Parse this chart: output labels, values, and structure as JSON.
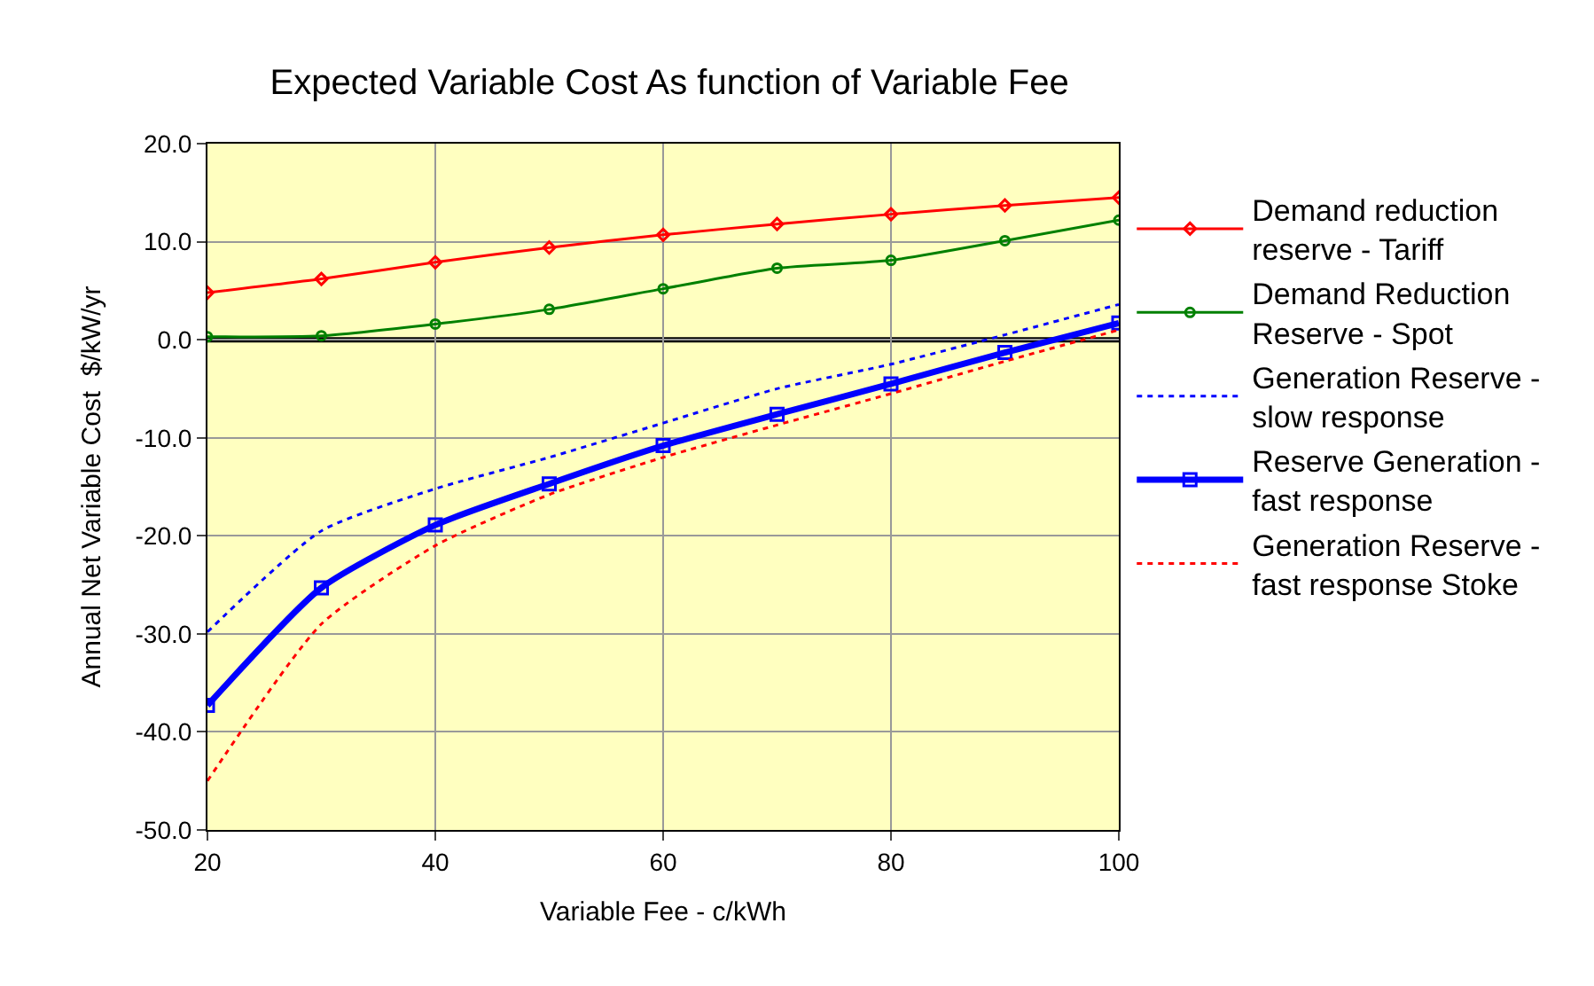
{
  "chart_data": {
    "type": "line",
    "title": "Expected Variable Cost As function of Variable Fee",
    "xlabel": "Variable Fee - c/kWh",
    "ylabel": "Annual Net Variable Cost  $/kW/yr",
    "x": [
      20,
      30,
      40,
      50,
      60,
      70,
      80,
      90,
      100
    ],
    "series": [
      {
        "name": "Demand reduction reserve - Tariff",
        "color": "#ff0000",
        "marker": "diamond",
        "line_style": "solid",
        "values": [
          4.8,
          6.2,
          7.9,
          9.4,
          10.7,
          11.8,
          12.8,
          13.7,
          14.5
        ]
      },
      {
        "name": "Demand Reduction Reserve - Spot",
        "color": "#008000",
        "marker": "circle",
        "line_style": "solid",
        "values": [
          0.3,
          0.4,
          1.6,
          3.1,
          5.2,
          7.3,
          8.1,
          10.1,
          12.2
        ]
      },
      {
        "name": "Generation Reserve - slow response",
        "color": "#0000ff",
        "marker": "none",
        "line_style": "dotted",
        "values": [
          -29.8,
          -19.5,
          -15.2,
          -12.0,
          -8.5,
          -5.0,
          -2.5,
          0.5,
          3.6
        ]
      },
      {
        "name": "Reserve Generation - fast response",
        "color": "#0000ff",
        "marker": "square",
        "line_style": "solid",
        "values": [
          -37.3,
          -25.3,
          -18.9,
          -14.7,
          -10.8,
          -7.6,
          -4.5,
          -1.3,
          1.7
        ]
      },
      {
        "name": "Generation Reserve - fast response Stoke",
        "color": "#ff0000",
        "marker": "none",
        "line_style": "dotted",
        "values": [
          -45.0,
          -29.0,
          -21.0,
          -15.8,
          -12.0,
          -8.7,
          -5.5,
          -2.2,
          1.0
        ]
      }
    ],
    "xlim": [
      20,
      100
    ],
    "xticks": [
      20,
      40,
      60,
      80,
      100
    ],
    "ylim": [
      -50,
      20
    ],
    "yticks": [
      {
        "value": -50,
        "label": "-50.0"
      },
      {
        "value": -40,
        "label": "-40.0"
      },
      {
        "value": -30,
        "label": "-30.0"
      },
      {
        "value": -20,
        "label": "-20.0"
      },
      {
        "value": -10,
        "label": "-10.0"
      },
      {
        "value": 0,
        "label": "0.0"
      },
      {
        "value": 10,
        "label": "10.0"
      },
      {
        "value": 20,
        "label": "20.0"
      }
    ],
    "ref_lines": [
      {
        "axis": "y",
        "value": 0,
        "color": "#000000"
      }
    ],
    "grid": true,
    "legend": "right"
  }
}
